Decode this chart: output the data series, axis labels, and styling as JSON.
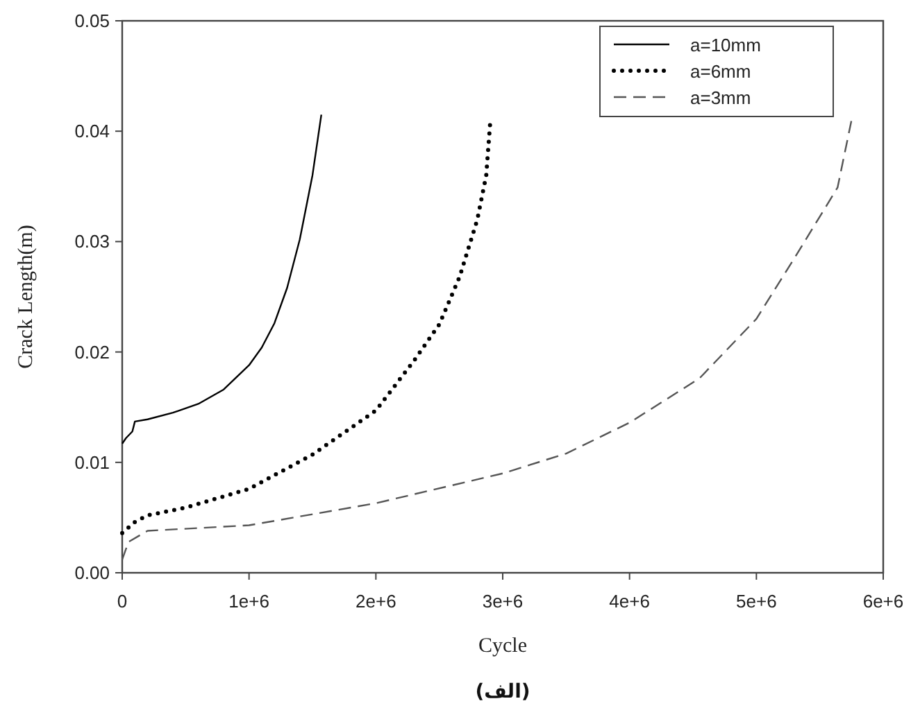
{
  "chart_data": {
    "type": "line",
    "xlabel": "Cycle",
    "ylabel": "Crack Length(m)",
    "annotations": [
      "(الف)"
    ],
    "xlim": [
      0,
      6000000
    ],
    "ylim": [
      0,
      0.05
    ],
    "xticks": [
      {
        "value": 0,
        "label": "0"
      },
      {
        "value": 1000000,
        "label": "1e+6"
      },
      {
        "value": 2000000,
        "label": "2e+6"
      },
      {
        "value": 3000000,
        "label": "3e+6"
      },
      {
        "value": 4000000,
        "label": "4e+6"
      },
      {
        "value": 5000000,
        "label": "5e+6"
      },
      {
        "value": 6000000,
        "label": "6e+6"
      }
    ],
    "yticks": [
      {
        "value": 0,
        "label": "0.00"
      },
      {
        "value": 0.01,
        "label": "0.01"
      },
      {
        "value": 0.02,
        "label": "0.02"
      },
      {
        "value": 0.03,
        "label": "0.03"
      },
      {
        "value": 0.04,
        "label": "0.04"
      },
      {
        "value": 0.05,
        "label": "0.05"
      }
    ],
    "grid": false,
    "legend": "top right",
    "marker": "none",
    "series": [
      {
        "name": "a=10mm",
        "color": "#000000",
        "line_style": "solid",
        "x": [
          0,
          30000,
          80000,
          100000,
          200000,
          400000,
          600000,
          800000,
          1000000,
          1100000,
          1200000,
          1300000,
          1400000,
          1500000,
          1570000
        ],
        "values": [
          0.0117,
          0.0122,
          0.0128,
          0.0137,
          0.0139,
          0.0145,
          0.0153,
          0.0166,
          0.0188,
          0.0204,
          0.0226,
          0.0258,
          0.0302,
          0.036,
          0.0415
        ]
      },
      {
        "name": "a=6mm",
        "color": "#000000",
        "line_style": "dotted",
        "x": [
          0,
          100000,
          200000,
          500000,
          1000000,
          1500000,
          2000000,
          2300000,
          2500000,
          2660000,
          2800000,
          2870000,
          2900000
        ],
        "values": [
          0.0036,
          0.0046,
          0.0052,
          0.0059,
          0.0076,
          0.0107,
          0.0147,
          0.0192,
          0.0225,
          0.0268,
          0.032,
          0.036,
          0.0406
        ]
      },
      {
        "name": "a=3mm",
        "color": "#555555",
        "line_style": "dashed",
        "x": [
          0,
          50000,
          200000,
          1000000,
          2000000,
          3000000,
          3500000,
          4000000,
          4550000,
          5000000,
          5300000,
          5640000,
          5750000
        ],
        "values": [
          0.0012,
          0.0028,
          0.0038,
          0.0043,
          0.0063,
          0.009,
          0.0108,
          0.0136,
          0.0176,
          0.023,
          0.0285,
          0.0349,
          0.041
        ]
      }
    ]
  }
}
